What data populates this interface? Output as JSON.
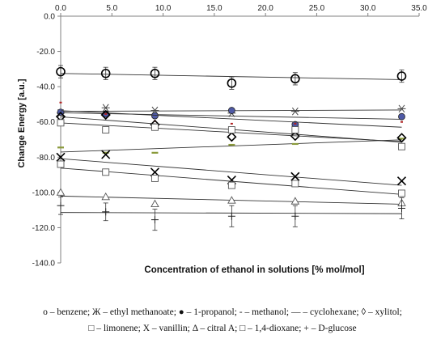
{
  "chart_data": {
    "type": "scatter",
    "title": "",
    "xlabel": "Concentration of ethanol in solutions [% mol/mol]",
    "ylabel": "Change Energy [a.u.]",
    "xlim": [
      0,
      35
    ],
    "ylim": [
      -140,
      0
    ],
    "x_ticks": [
      "0.0",
      "5.0",
      "10.0",
      "15.0",
      "20.0",
      "25.0",
      "30.0",
      "35.0"
    ],
    "y_ticks": [
      "0.0",
      "-20.0",
      "-40.0",
      "-60.0",
      "-80.0",
      "-100.0",
      "-120.0",
      "-140.0"
    ],
    "x_axis_position": "top",
    "grid": false,
    "trendlines": true,
    "x": [
      0,
      4.4,
      9.2,
      16.7,
      22.9,
      33.3
    ],
    "series": [
      {
        "name": "benzene",
        "marker": "circle",
        "values": [
          -31.5,
          -32.5,
          -32.5,
          -38,
          -35.5,
          -34
        ],
        "errors": [
          3.5,
          3.5,
          3.5,
          3.5,
          3.5,
          3.5
        ]
      },
      {
        "name": "ethyl methanoate",
        "marker": "asterisk",
        "values": [
          -55,
          -52,
          -53.5,
          -55,
          -54,
          -52.5
        ]
      },
      {
        "name": "1-propanol",
        "marker": "filled-circle",
        "values": [
          -54.5,
          -55.5,
          -56.5,
          -53.5,
          -61.5,
          -57
        ]
      },
      {
        "name": "methanol",
        "marker": "dash",
        "values": [
          -49,
          -55.5,
          -59.5,
          -61,
          -61,
          -60
        ]
      },
      {
        "name": "cyclohexane",
        "marker": "long-dash",
        "values": [
          -74.5,
          -77.5,
          -77.5,
          -73,
          -72.5,
          -69.5
        ]
      },
      {
        "name": "xylitol",
        "marker": "diamond",
        "values": [
          -57,
          -56,
          -61.5,
          -68.5,
          -68,
          -69
        ]
      },
      {
        "name": "limonene",
        "marker": "square",
        "values": [
          -60.5,
          -64.5,
          -63,
          -64.5,
          -64.5,
          -74
        ]
      },
      {
        "name": "vanillin",
        "marker": "cross",
        "values": [
          -80,
          -78.5,
          -88.5,
          -93,
          -91,
          -93.5
        ]
      },
      {
        "name": "citral A",
        "marker": "triangle",
        "values": [
          -100,
          -102.5,
          -106.5,
          -104.5,
          -105,
          -106
        ]
      },
      {
        "name": "1,4-dioxane",
        "marker": "square",
        "values": [
          -84,
          -88.5,
          -92,
          -96,
          -95,
          -100.5
        ]
      },
      {
        "name": "D-glucose",
        "marker": "plus",
        "values": [
          -107.5,
          -111,
          -115.5,
          -113.5,
          -113.5,
          -109
        ],
        "errors": [
          5,
          5,
          6,
          6,
          6,
          6
        ]
      }
    ],
    "legend_placement": "bottom"
  },
  "legend": {
    "line1": "o – benzene; Ж – ethyl methanoate; ● – 1-propanol; - – methanol; — – cyclohexane; ◊ – xylitol;",
    "line2": "□ – limonene; Χ – vanillin; Δ – citral A; □ – 1,4-dioxane; + – D-glucose"
  },
  "colors": {
    "axis": "#808080",
    "marker": "#000000",
    "propanol_fill": "#4f5aa6",
    "cyclohexane": "#8a9a3b",
    "methanol": "#b02020"
  }
}
